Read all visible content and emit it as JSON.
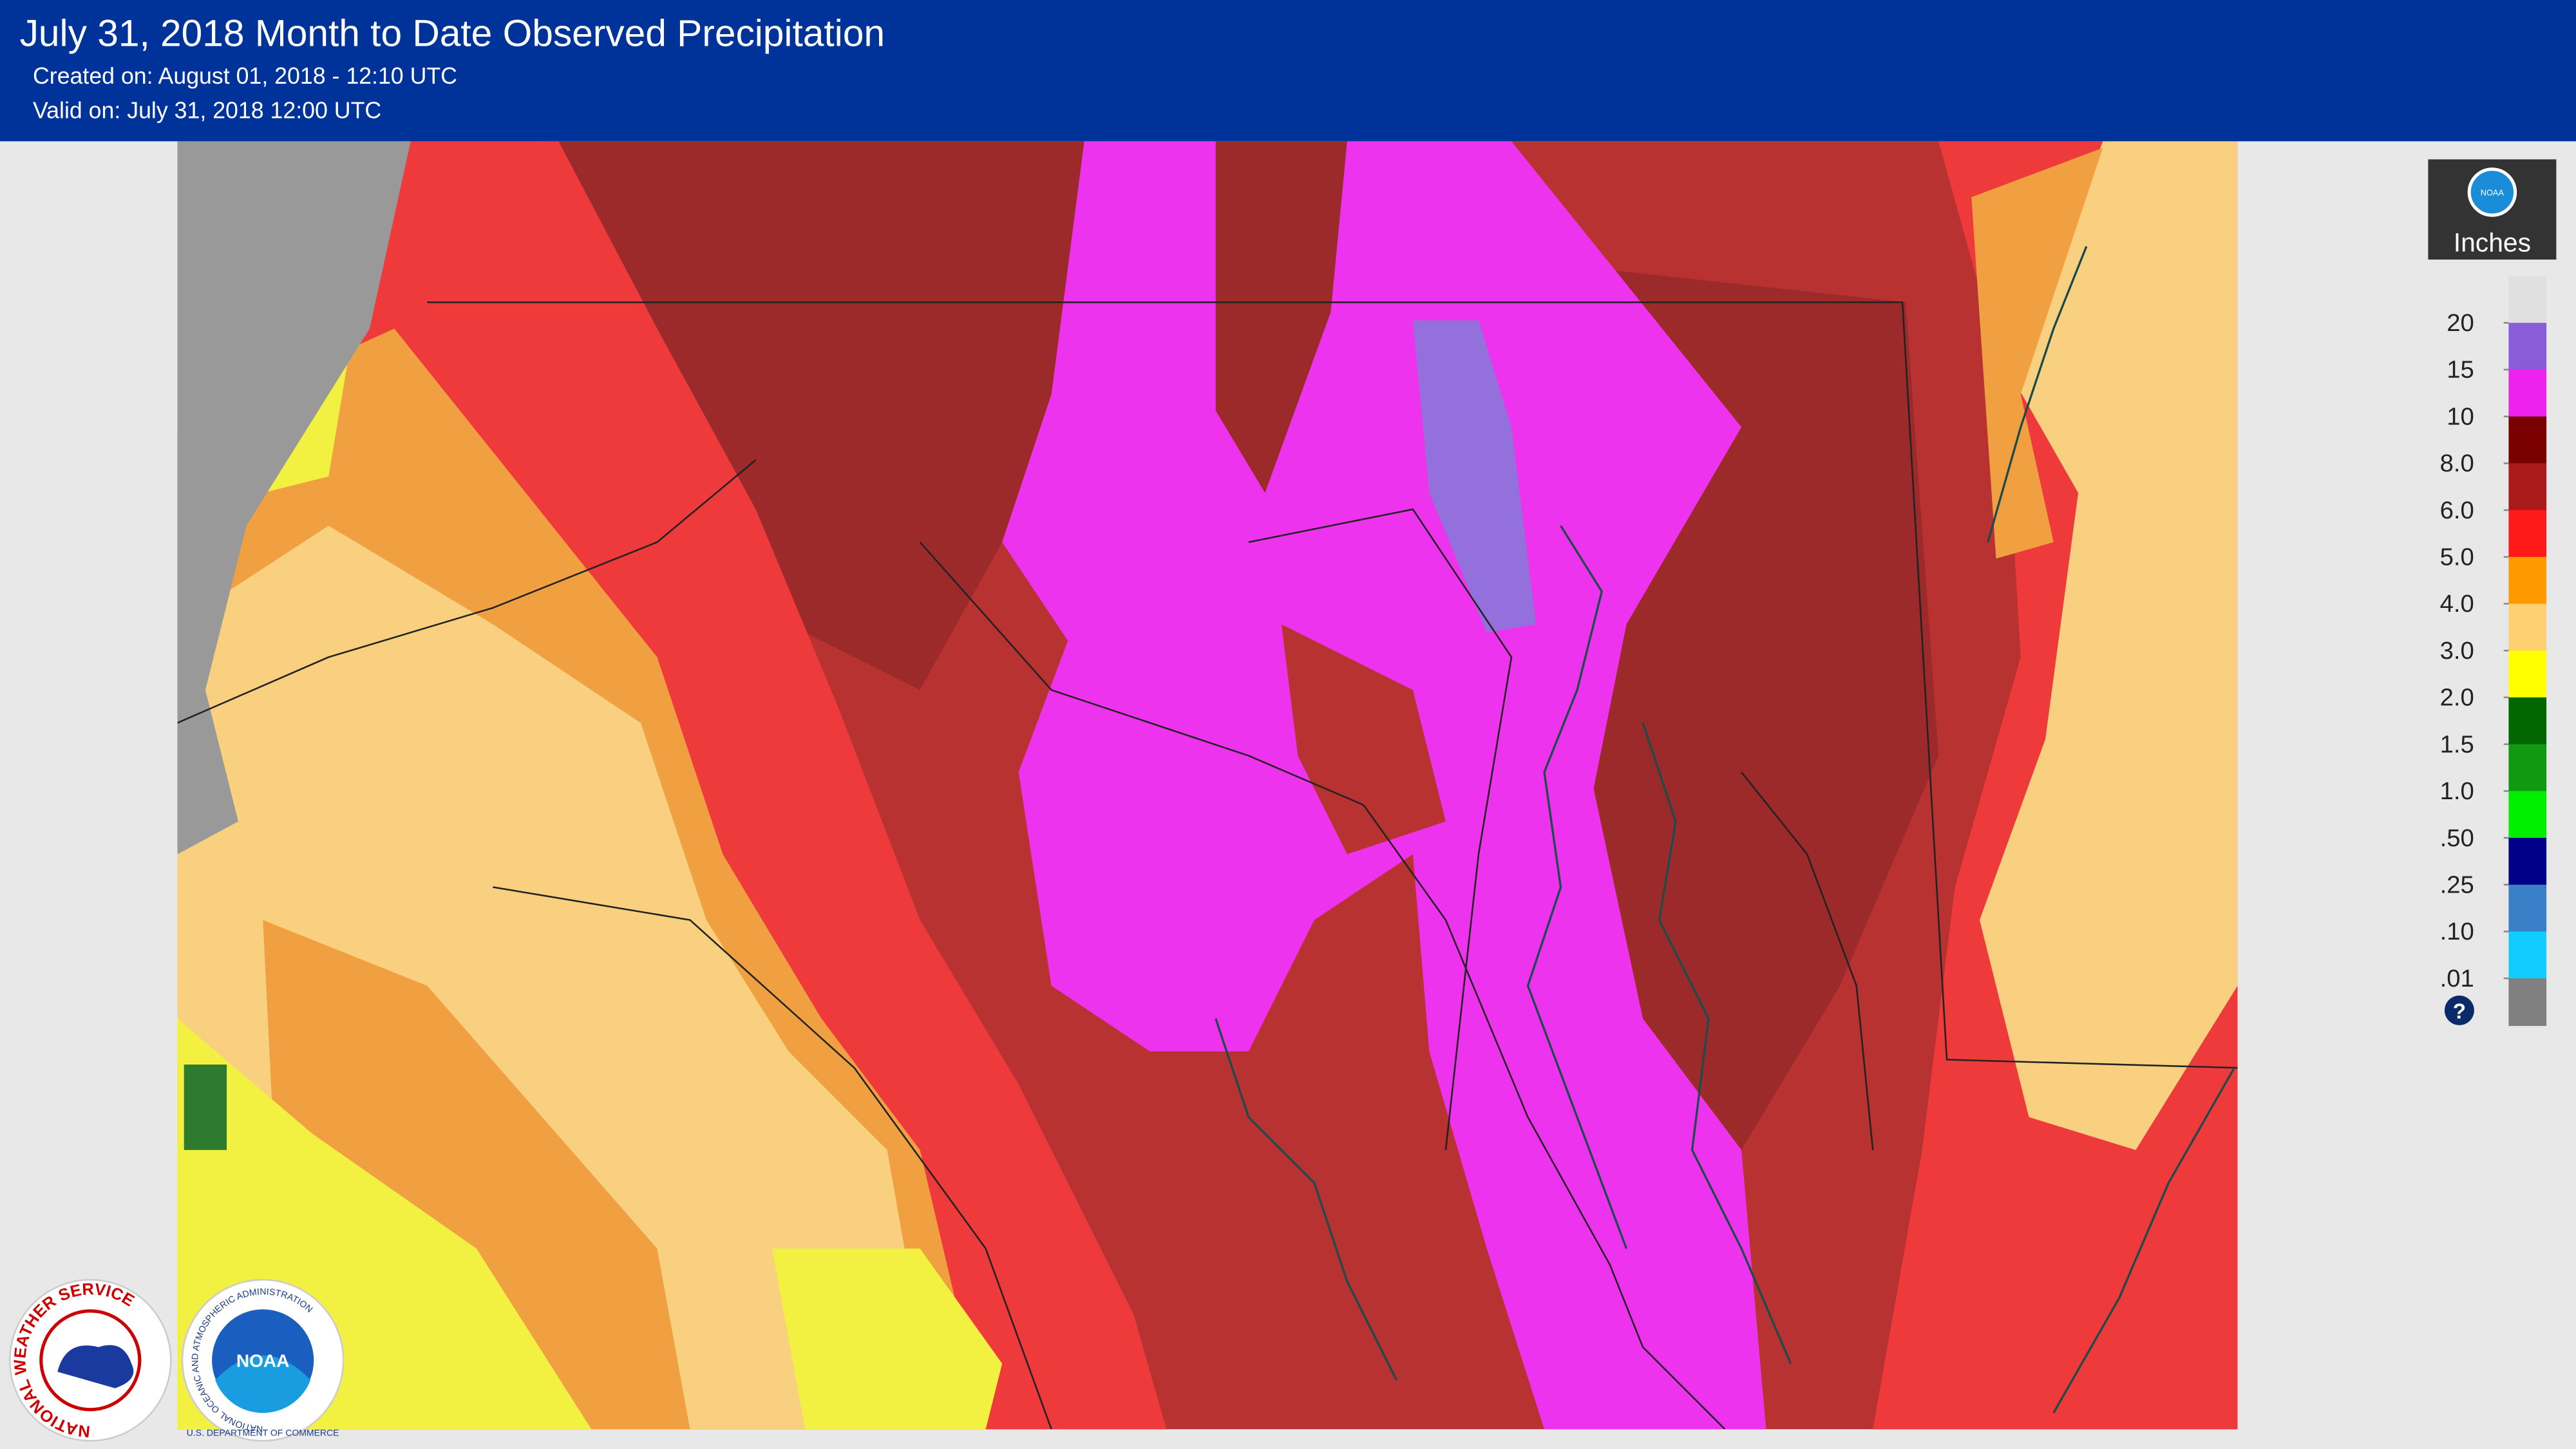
{
  "header": {
    "title": "July 31, 2018 Month to Date Observed Precipitation",
    "created": "Created on: August 01, 2018 - 12:10 UTC",
    "valid": "Valid on: July 31, 2018 12:00 UTC"
  },
  "legend": {
    "logo": "NOAA",
    "unit": "Inches",
    "labels": [
      "20",
      "15",
      "10",
      "8.0",
      "6.0",
      "5.0",
      "4.0",
      "3.0",
      "2.0",
      "1.5",
      "1.0",
      ".50",
      ".25",
      ".10",
      ".01"
    ],
    "colors": [
      "#e0e0e0",
      "#8a5cd8",
      "#ee22ee",
      "#7a0000",
      "#aa1a1a",
      "#ff1a1a",
      "#ff9900",
      "#ffd070",
      "#ffff00",
      "#006600",
      "#119911",
      "#00ee00",
      "#000088",
      "#3a80c8",
      "#11ccff",
      "#808080"
    ],
    "help": "?"
  },
  "logos": {
    "nws": "NATIONAL WEATHER SERVICE",
    "noaa": "NOAA",
    "noaa_ring": "NATIONAL OCEANIC AND ATMOSPHERIC ADMINISTRATION",
    "doc": "U.S. DEPARTMENT OF COMMERCE"
  }
}
